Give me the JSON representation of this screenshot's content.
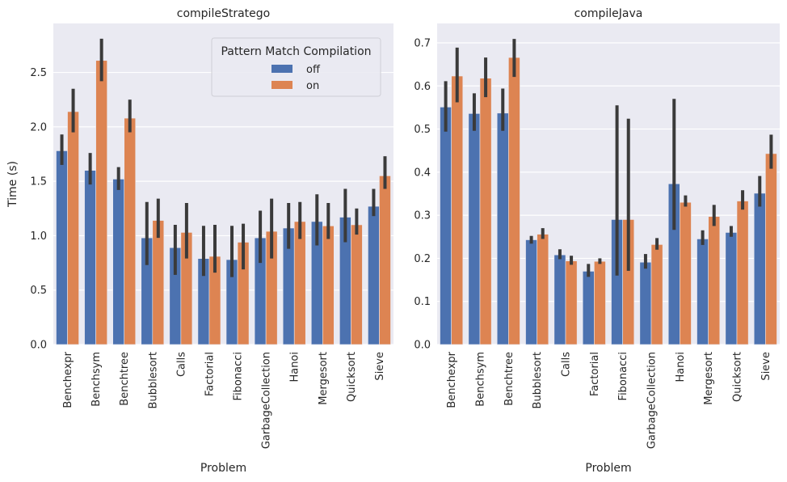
{
  "colors": {
    "background": "#eaeaf2",
    "grid": "#ffffff",
    "off": "#4c72b0",
    "on": "#dd8452",
    "errorbar": "#3a3a3a"
  },
  "chart_data": [
    {
      "type": "bar",
      "title": "compileStratego",
      "xlabel": "Problem",
      "ylabel": "Time (s)",
      "ylim": [
        0,
        2.95
      ],
      "yticks": [
        0.0,
        0.5,
        1.0,
        1.5,
        2.0,
        2.5
      ],
      "ytick_labels": [
        "0.0",
        "0.5",
        "1.0",
        "1.5",
        "2.0",
        "2.5"
      ],
      "grid": true,
      "legend": {
        "title": "Pattern Match Compilation",
        "placement": "top-right",
        "entries": [
          "off",
          "on"
        ]
      },
      "categories": [
        "Benchexpr",
        "Benchsym",
        "Benchtree",
        "Bubblesort",
        "Calls",
        "Factorial",
        "Fibonacci",
        "GarbageCollection",
        "Hanoi",
        "Mergesort",
        "Quicksort",
        "Sieve"
      ],
      "series": [
        {
          "name": "off",
          "values": [
            1.78,
            1.6,
            1.52,
            0.98,
            0.89,
            0.79,
            0.78,
            0.98,
            1.07,
            1.13,
            1.17,
            1.27
          ],
          "ci_low": [
            1.65,
            1.47,
            1.42,
            0.73,
            0.64,
            0.63,
            0.62,
            0.75,
            0.88,
            0.91,
            0.94,
            1.18
          ],
          "ci_high": [
            1.93,
            1.76,
            1.63,
            1.31,
            1.1,
            1.09,
            1.09,
            1.23,
            1.3,
            1.38,
            1.43,
            1.43
          ]
        },
        {
          "name": "on",
          "values": [
            2.14,
            2.61,
            2.08,
            1.14,
            1.03,
            0.81,
            0.94,
            1.04,
            1.13,
            1.09,
            1.1,
            1.55
          ],
          "ci_low": [
            1.95,
            2.42,
            1.95,
            0.98,
            0.79,
            0.66,
            0.69,
            0.79,
            0.97,
            0.97,
            1.01,
            1.43
          ],
          "ci_high": [
            2.35,
            2.81,
            2.25,
            1.34,
            1.3,
            1.1,
            1.11,
            1.34,
            1.31,
            1.3,
            1.25,
            1.73
          ]
        }
      ]
    },
    {
      "type": "bar",
      "title": "compileJava",
      "xlabel": "Problem",
      "ylabel": "",
      "ylim": [
        0,
        0.745
      ],
      "yticks": [
        0.0,
        0.1,
        0.2,
        0.3,
        0.4,
        0.5,
        0.6,
        0.7
      ],
      "ytick_labels": [
        "0.0",
        "0.1",
        "0.2",
        "0.3",
        "0.4",
        "0.5",
        "0.6",
        "0.7"
      ],
      "grid": true,
      "categories": [
        "Benchexpr",
        "Benchsym",
        "Benchtree",
        "Bubblesort",
        "Calls",
        "Factorial",
        "Fibonacci",
        "GarbageCollection",
        "Hanoi",
        "Mergesort",
        "Quicksort",
        "Sieve"
      ],
      "series": [
        {
          "name": "off",
          "values": [
            0.551,
            0.536,
            0.537,
            0.243,
            0.208,
            0.17,
            0.29,
            0.191,
            0.373,
            0.245,
            0.26,
            0.351
          ],
          "ci_low": [
            0.494,
            0.496,
            0.496,
            0.234,
            0.198,
            0.157,
            0.16,
            0.176,
            0.266,
            0.231,
            0.25,
            0.32
          ],
          "ci_high": [
            0.611,
            0.583,
            0.594,
            0.252,
            0.221,
            0.187,
            0.555,
            0.21,
            0.57,
            0.265,
            0.275,
            0.391
          ]
        },
        {
          "name": "on",
          "values": [
            0.623,
            0.618,
            0.666,
            0.256,
            0.194,
            0.193,
            0.29,
            0.232,
            0.33,
            0.297,
            0.333,
            0.443
          ],
          "ci_low": [
            0.562,
            0.574,
            0.621,
            0.245,
            0.185,
            0.187,
            0.171,
            0.22,
            0.32,
            0.275,
            0.313,
            0.408
          ],
          "ci_high": [
            0.689,
            0.666,
            0.709,
            0.27,
            0.206,
            0.2,
            0.524,
            0.247,
            0.346,
            0.324,
            0.358,
            0.487
          ]
        }
      ]
    }
  ]
}
